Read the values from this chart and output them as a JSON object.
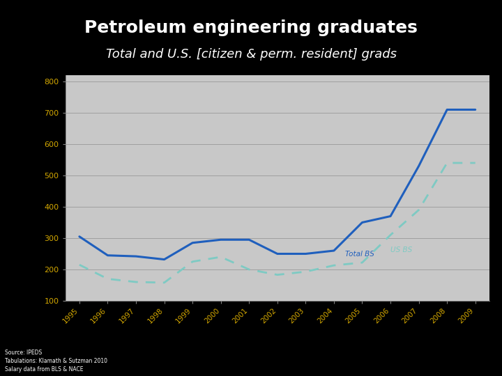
{
  "title": "Petroleum engineering graduates",
  "subtitle": "Total and U.S. [citizen & perm. resident] grads",
  "background_color": "#000000",
  "plot_bg_color": "#c8c8c8",
  "title_color": "#ffffff",
  "subtitle_color": "#ffffff",
  "tick_color": "#d4a800",
  "years": [
    1995,
    1996,
    1997,
    1998,
    1999,
    2000,
    2001,
    2002,
    2003,
    2004,
    2005,
    2006,
    2007,
    2008,
    2009
  ],
  "total_bs": [
    305,
    245,
    242,
    232,
    285,
    295,
    295,
    250,
    250,
    260,
    350,
    370,
    530,
    710,
    710
  ],
  "us_bs": [
    215,
    170,
    160,
    158,
    225,
    240,
    200,
    183,
    193,
    213,
    222,
    310,
    390,
    540,
    540
  ],
  "total_color": "#1f5fbd",
  "us_color": "#7ecac3",
  "legend_total": "Total BS",
  "legend_us": "US BS",
  "ylim": [
    100,
    820
  ],
  "yticks": [
    100,
    200,
    300,
    400,
    500,
    600,
    700,
    800
  ],
  "source_text": "Source: IPEDS\nTabulations: Klamath & Sutzman 2010\nSalary data from BLS & NACE",
  "source_color": "#ffffff",
  "source_fontsize": 5.5,
  "title_fontsize": 18,
  "subtitle_fontsize": 13
}
